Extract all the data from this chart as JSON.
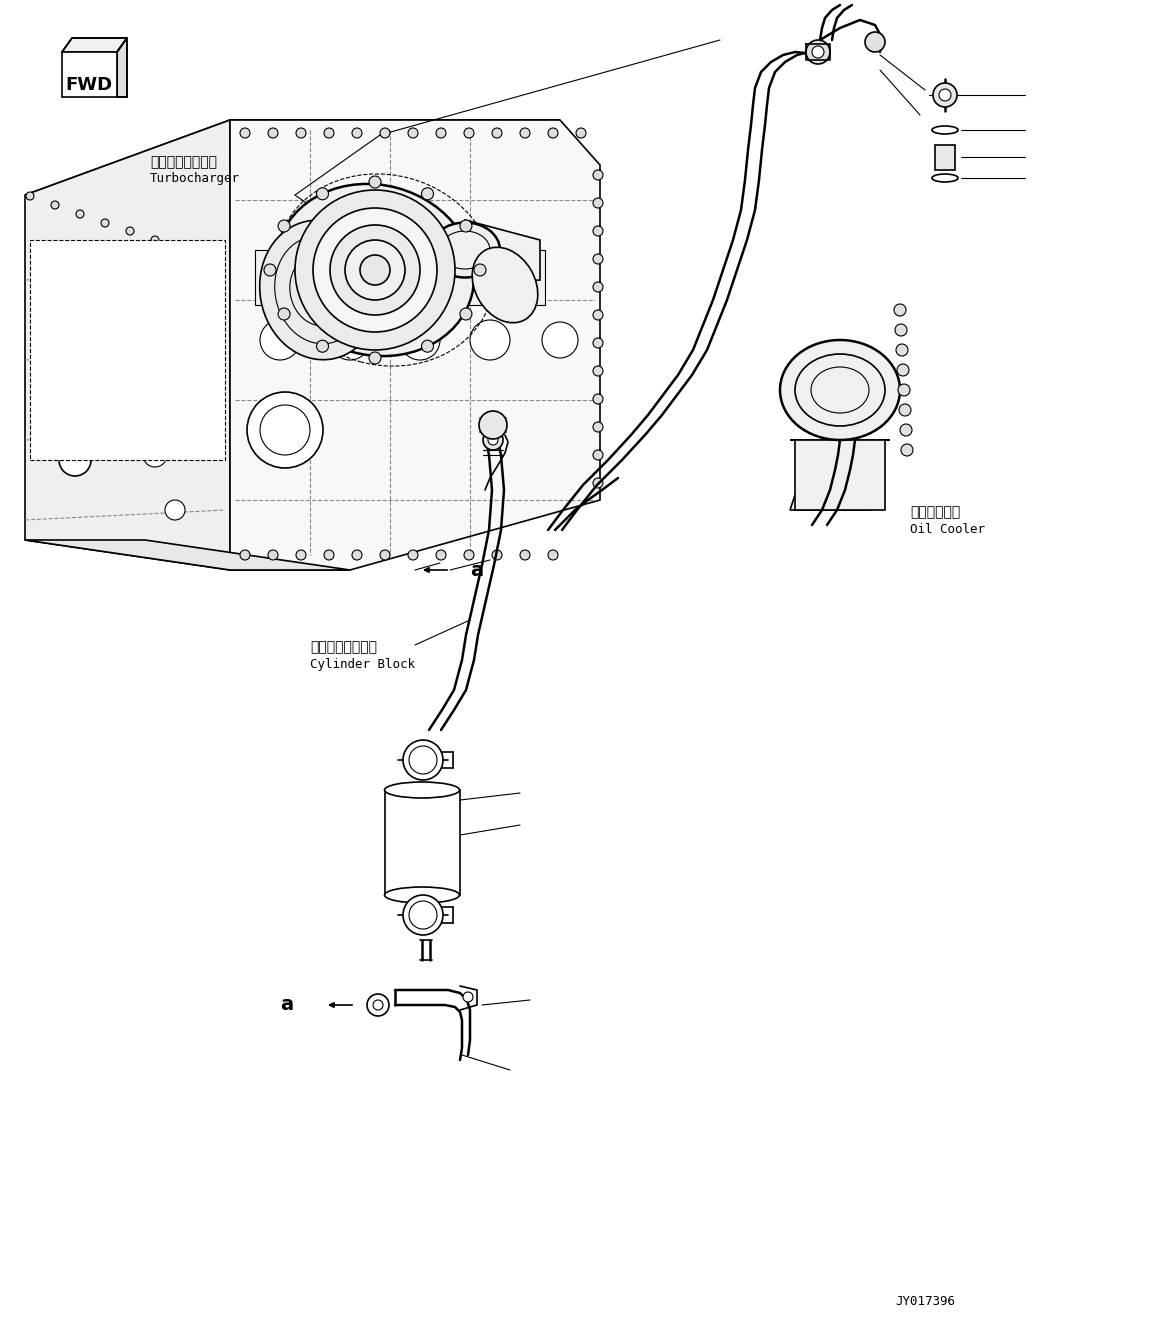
{
  "bg_color": "#ffffff",
  "line_color": "#000000",
  "figure_width": 11.63,
  "figure_height": 13.23,
  "dpi": 100,
  "labels": {
    "turbocharger_jp": "ターボチャージャ",
    "turbocharger_en": "Turbocharger",
    "cylinder_block_jp": "シリンダブロック",
    "cylinder_block_en": "Cylinder Block",
    "oil_cooler_jp": "オイルクーラ",
    "oil_cooler_en": "Oil Cooler",
    "part_code": "JY017396",
    "label_a": "a"
  }
}
